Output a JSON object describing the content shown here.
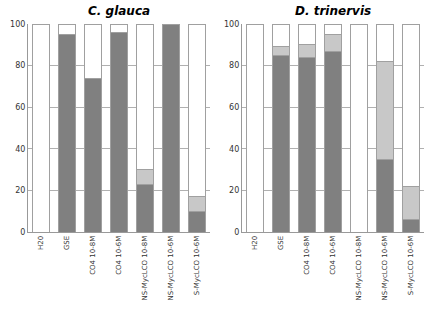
{
  "chart_data": [
    {
      "type": "bar",
      "title": "C. glauca",
      "categories": [
        "H20",
        "GSE",
        "CO4 10-8M",
        "CO4 10-6M",
        "NS-MycLCO 10-8M",
        "NS-MycLCO 10-6M",
        "S-MycLCO 10-6M"
      ],
      "series": [
        {
          "color": "#808080",
          "values": [
            0,
            95,
            74,
            96,
            23,
            100,
            10
          ]
        },
        {
          "color": "#c8c8c8",
          "values": [
            0,
            0,
            0,
            0,
            7,
            0,
            7
          ]
        },
        {
          "color": "#ffffff",
          "values": [
            100,
            5,
            26,
            4,
            70,
            0,
            83
          ]
        }
      ],
      "stacked": true,
      "ylim": [
        0,
        100
      ],
      "yticks": [
        0,
        20,
        40,
        60,
        80,
        100
      ],
      "grid": true
    },
    {
      "type": "bar",
      "title": "D. trinervis",
      "categories": [
        "H20",
        "GSE",
        "CO4 10-8M",
        "CO4 10-6M",
        "NS-MycLCO 10-8M",
        "NS-MycLCO 10-6M",
        "S-MycLCO 10-6M"
      ],
      "series": [
        {
          "color": "#808080",
          "values": [
            0,
            85,
            84,
            87,
            0,
            35,
            6
          ]
        },
        {
          "color": "#c8c8c8",
          "values": [
            0,
            4,
            6,
            8,
            0,
            47,
            16
          ]
        },
        {
          "color": "#ffffff",
          "values": [
            100,
            11,
            10,
            5,
            100,
            18,
            78
          ]
        }
      ],
      "stacked": true,
      "ylim": [
        0,
        100
      ],
      "yticks": [
        0,
        20,
        40,
        60,
        80,
        100
      ],
      "grid": true
    }
  ]
}
